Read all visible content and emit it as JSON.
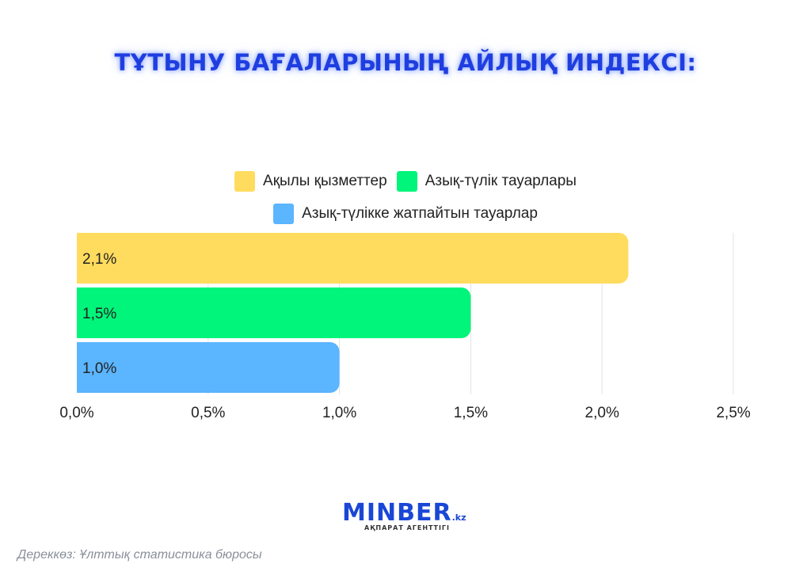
{
  "title": "ТҰТЫНУ БАҒАЛАРЫНЫҢ АЙЛЫҚ ИНДЕКСІ:",
  "legend": [
    {
      "label": "Ақылы қызметтер",
      "color": "#ffdc5e"
    },
    {
      "label": "Азық-түлік тауарлары",
      "color": "#00f57a"
    },
    {
      "label": "Азық-түлікке жатпайтын тауарлар",
      "color": "#5bb5ff"
    }
  ],
  "chart_data": {
    "type": "bar",
    "orientation": "horizontal",
    "series": [
      {
        "name": "Ақылы қызметтер",
        "value": 2.1,
        "label": "2,1%",
        "color": "#ffdc5e"
      },
      {
        "name": "Азық-түлік тауарлары",
        "value": 1.5,
        "label": "1,5%",
        "color": "#00f57a"
      },
      {
        "name": "Азық-түлікке жатпайтын тауарлар",
        "value": 1.0,
        "label": "1,0%",
        "color": "#5bb5ff"
      }
    ],
    "xlim": [
      0,
      2.5
    ],
    "xticks": [
      0,
      0.5,
      1.0,
      1.5,
      2.0,
      2.5
    ],
    "xtick_labels": [
      "0,0%",
      "0,5%",
      "1,0%",
      "1,5%",
      "2,0%",
      "2,5%"
    ],
    "grid": true,
    "legend_position": "top-center"
  },
  "logo": {
    "name": "MINBER",
    "suffix": ".kz",
    "tagline": "АҚПАРАТ АГЕНТТІГІ"
  },
  "source": "Дереккөз: Ұлттық статистика бюросы"
}
